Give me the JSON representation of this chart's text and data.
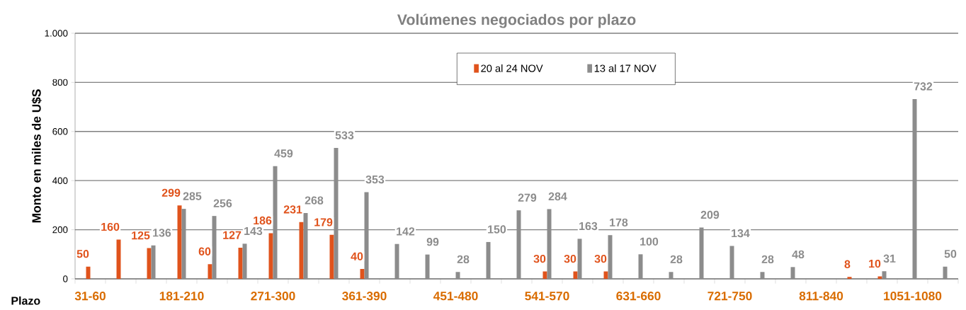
{
  "chart_data": {
    "type": "bar",
    "title": "Volúmenes negociados por plazo",
    "xlabel": "Plazo",
    "ylabel": "Monto en  miles de U$S",
    "categories": [
      "31-60",
      null,
      null,
      "181-210",
      null,
      null,
      "271-300",
      null,
      null,
      "361-390",
      null,
      null,
      "451-480",
      null,
      null,
      "541-570",
      null,
      null,
      "631-660",
      null,
      null,
      "721-750",
      null,
      null,
      "811-840",
      null,
      null,
      "1051-1080",
      null
    ],
    "series": [
      {
        "name": "20 al 24 NOV",
        "color": "#e0531c",
        "values": [
          50,
          160,
          125,
          299,
          60,
          127,
          186,
          231,
          179,
          40,
          null,
          null,
          null,
          null,
          null,
          30,
          30,
          30,
          null,
          null,
          null,
          null,
          null,
          null,
          null,
          8,
          10,
          null,
          null
        ]
      },
      {
        "name": "13 al 17 NOV",
        "color": "#8c8c8c",
        "values": [
          null,
          null,
          136,
          285,
          256,
          143,
          459,
          268,
          533,
          353,
          142,
          99,
          28,
          150,
          279,
          284,
          163,
          178,
          100,
          28,
          209,
          134,
          28,
          48,
          null,
          null,
          31,
          732,
          50
        ]
      }
    ],
    "ylim": [
      0,
      1000
    ],
    "yticks": [
      0,
      200,
      400,
      600,
      800,
      {
        "value": 1000,
        "label": "1.000"
      }
    ],
    "grid": "y",
    "legend": "top",
    "data_labels": true
  }
}
